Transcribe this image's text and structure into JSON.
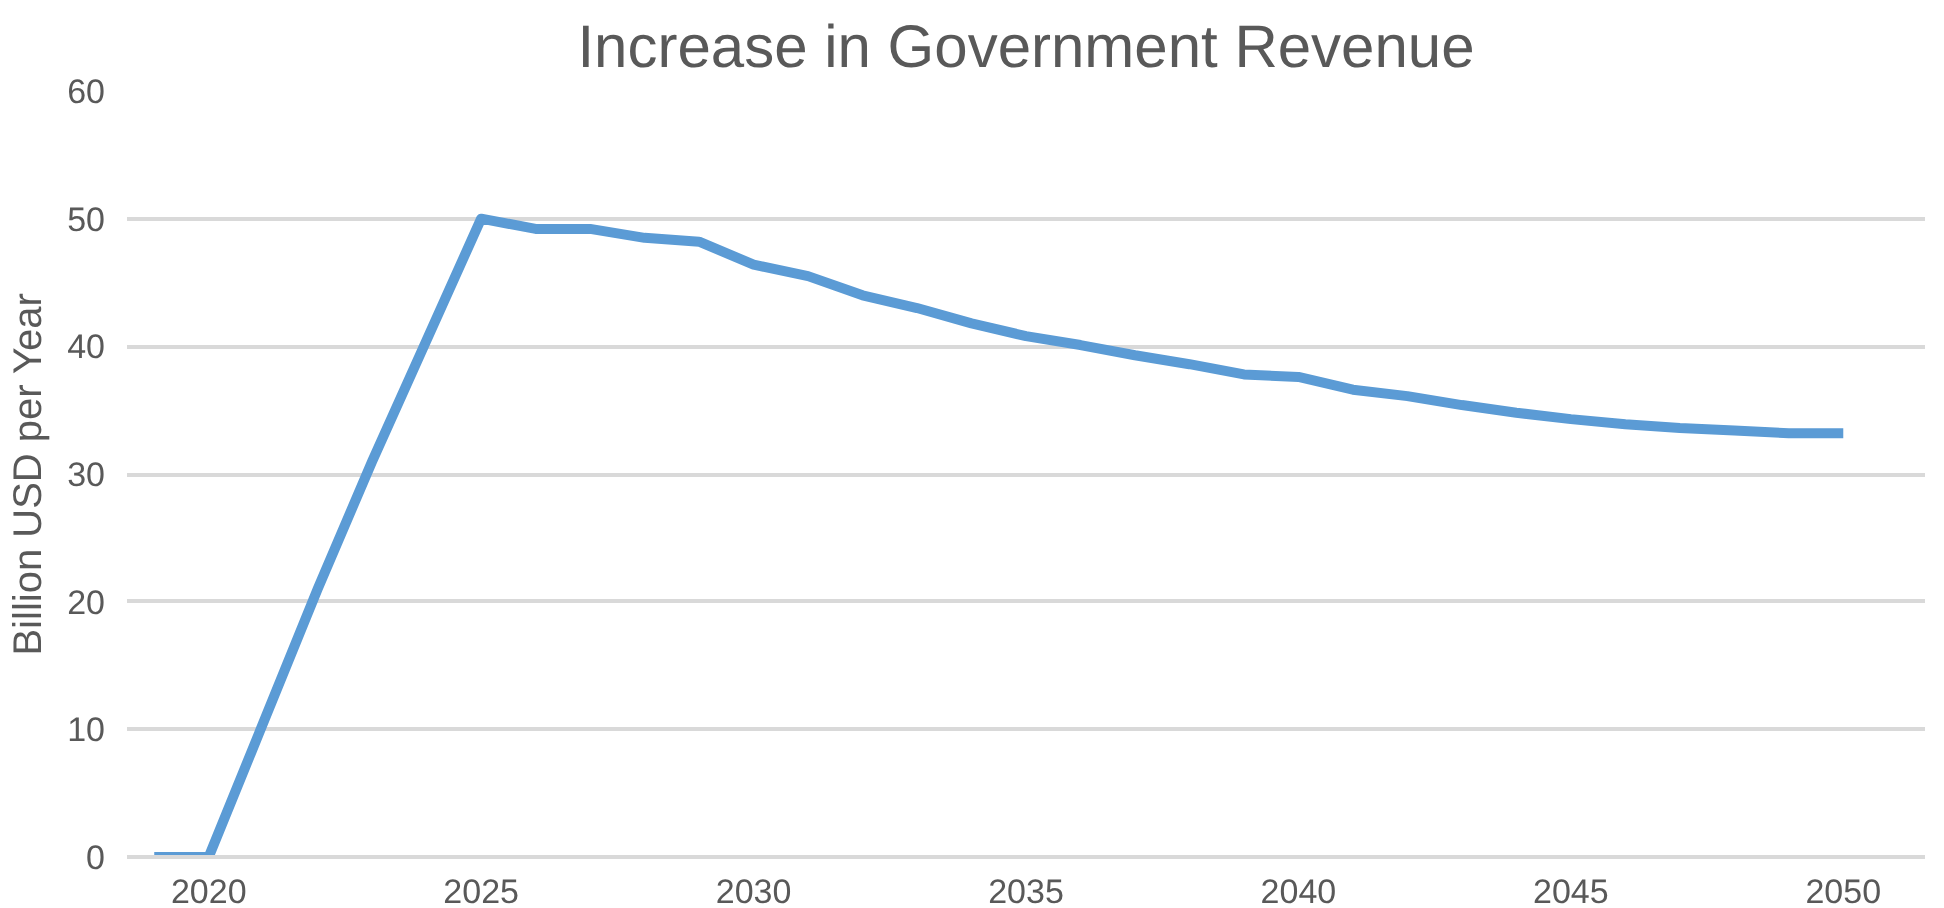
{
  "chart_data": {
    "type": "line",
    "title": "Increase in Government Revenue",
    "ylabel": "Billion USD per Year",
    "x": [
      2019,
      2020,
      2021,
      2022,
      2023,
      2024,
      2025,
      2026,
      2027,
      2028,
      2029,
      2030,
      2031,
      2032,
      2033,
      2034,
      2035,
      2036,
      2037,
      2038,
      2039,
      2040,
      2041,
      2042,
      2043,
      2044,
      2045,
      2046,
      2047,
      2048,
      2049,
      2050
    ],
    "series": [
      {
        "color": "#5b9bd5",
        "values": [
          0,
          0,
          10.5,
          21,
          31,
          40.5,
          50,
          49.2,
          49.2,
          48.5,
          48.2,
          46.4,
          45.5,
          44,
          43,
          41.8,
          40.8,
          40.1,
          39.3,
          38.6,
          37.8,
          37.6,
          36.6,
          36.1,
          35.4,
          34.8,
          34.3,
          33.9,
          33.6,
          33.4,
          33.2,
          33.2
        ]
      }
    ],
    "xlim": [
      2018.5,
      2051.5
    ],
    "xticks": [
      2020,
      2025,
      2030,
      2035,
      2040,
      2045,
      2050
    ],
    "ylim": [
      0,
      60
    ],
    "yticks": [
      0,
      10,
      20,
      30,
      40,
      50,
      60
    ],
    "grid": "y",
    "marker": "none",
    "line_style": "solid"
  }
}
